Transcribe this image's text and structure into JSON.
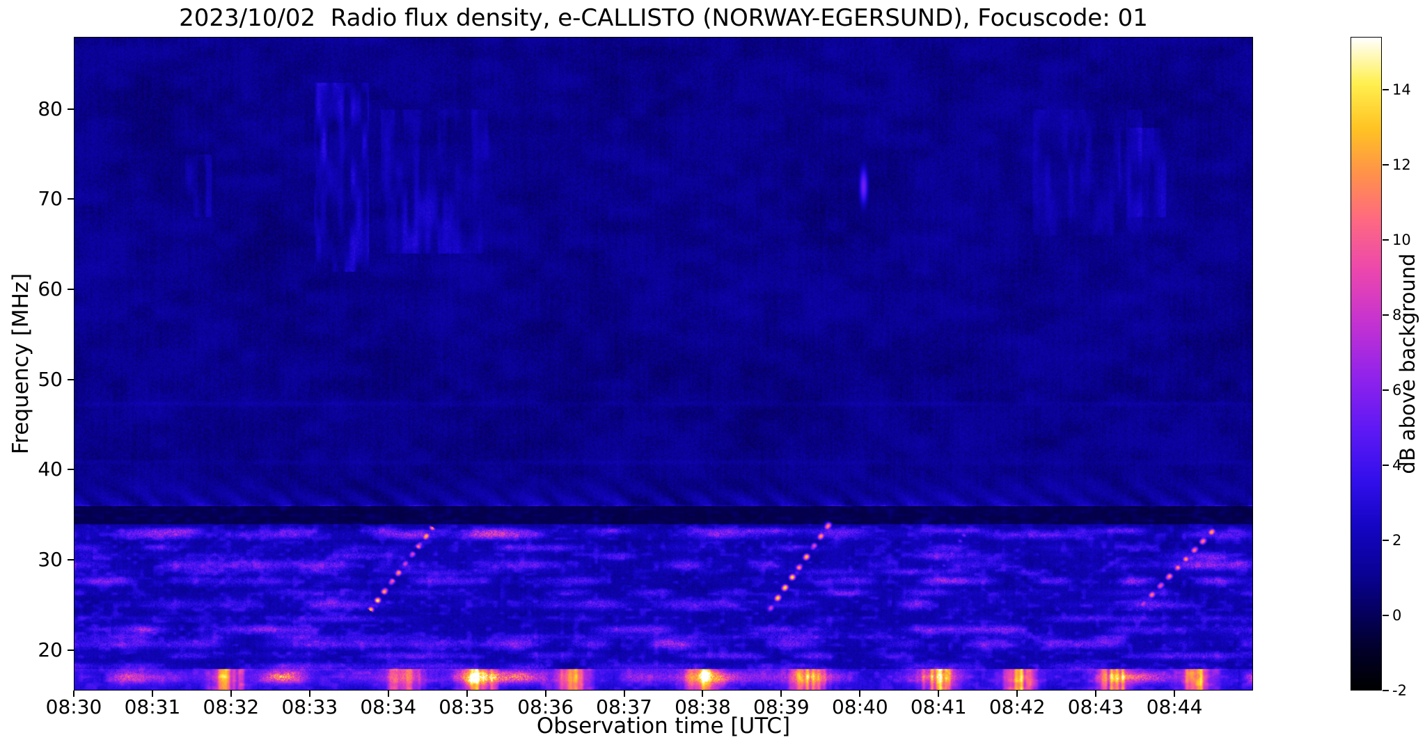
{
  "chart_data": {
    "type": "heatmap",
    "title": "2023/10/02  Radio flux density, e-CALLISTO (NORWAY-EGERSUND), Focuscode: 01",
    "date": "2023/10/02",
    "instrument": "e-CALLISTO",
    "station": "NORWAY-EGERSUND",
    "focuscode": "01",
    "xlabel": "Observation time [UTC]",
    "ylabel": "Frequency [MHz]",
    "x_range_utc": [
      "08:30",
      "08:45"
    ],
    "x_duration_min": 15,
    "x_ticks": [
      "08:30",
      "08:31",
      "08:32",
      "08:33",
      "08:34",
      "08:35",
      "08:36",
      "08:37",
      "08:38",
      "08:39",
      "08:40",
      "08:41",
      "08:42",
      "08:43",
      "08:44"
    ],
    "y_range_mhz": [
      15.5,
      88
    ],
    "y_ticks": [
      20,
      30,
      40,
      50,
      60,
      70,
      80
    ],
    "colorbar": {
      "label": "dB above background",
      "ticks": [
        -2,
        0,
        2,
        4,
        6,
        8,
        10,
        12,
        14
      ],
      "range": [
        -2,
        15.4
      ],
      "gradient": [
        {
          "u": 0.0,
          "c": "#000000"
        },
        {
          "u": 0.06,
          "c": "#020028"
        },
        {
          "u": 0.12,
          "c": "#05005f"
        },
        {
          "u": 0.18,
          "c": "#0a0296"
        },
        {
          "u": 0.25,
          "c": "#1405c3"
        },
        {
          "u": 0.32,
          "c": "#320feb"
        },
        {
          "u": 0.4,
          "c": "#5f19f5"
        },
        {
          "u": 0.48,
          "c": "#9123eb"
        },
        {
          "u": 0.56,
          "c": "#c332d2"
        },
        {
          "u": 0.64,
          "c": "#eb46af"
        },
        {
          "u": 0.72,
          "c": "#ff6982"
        },
        {
          "u": 0.79,
          "c": "#ff914b"
        },
        {
          "u": 0.86,
          "c": "#ffc323"
        },
        {
          "u": 0.93,
          "c": "#fff050"
        },
        {
          "u": 1.0,
          "c": "#ffffff"
        }
      ]
    },
    "features": [
      "Quiet deep-blue background (~0-1 dB) above ~36 MHz",
      "Strong broadband interference band below ~35 MHz with bright horizontal striations, up to ~15 dB near 16-17 MHz",
      "Dark attenuated lane at ~34-36 MHz",
      "Wavy scalloped arcs just above the band at 36-40 MHz",
      "Drifting burst ~08:33:47-08:34:33 rising ~24 to 33 MHz",
      "Drifting burst ~08:38:49-08:39:37 rising ~24 to 34 MHz",
      "Faint drifting burst ~08:40:54-08:41:21 around 27-33 MHz",
      "Drifting burst ~08:43:33-08:44:30 rising ~24 to 33 MHz",
      "Compact bright feature at ~08:40 between 69-74 MHz",
      "Faint blue vertical haze streaks ~08:33-08:35 between 62-83 MHz"
    ],
    "render": {
      "rfi_lines": [
        {
          "f": 16.9,
          "a": 5.5,
          "w": 0.5,
          "s": 1
        },
        {
          "f": 18.1,
          "a": 2.6,
          "w": 0.35,
          "s": 2
        },
        {
          "f": 19.3,
          "a": 2.0,
          "w": 0.3,
          "s": 3
        },
        {
          "f": 20.6,
          "a": 3.2,
          "w": 0.4,
          "s": 4
        },
        {
          "f": 21.4,
          "a": 1.8,
          "w": 0.25,
          "s": 5
        },
        {
          "f": 22.2,
          "a": 2.8,
          "w": 0.35,
          "s": 6
        },
        {
          "f": 23.4,
          "a": 1.6,
          "w": 0.3,
          "s": 7
        },
        {
          "f": 25.0,
          "a": 3.2,
          "w": 0.45,
          "s": 8
        },
        {
          "f": 26.3,
          "a": 2.0,
          "w": 0.3,
          "s": 9
        },
        {
          "f": 27.6,
          "a": 2.6,
          "w": 0.35,
          "s": 10
        },
        {
          "f": 28.6,
          "a": 1.7,
          "w": 0.25,
          "s": 11
        },
        {
          "f": 29.4,
          "a": 3.2,
          "w": 0.4,
          "s": 12
        },
        {
          "f": 30.4,
          "a": 2.4,
          "w": 0.3,
          "s": 13
        },
        {
          "f": 31.3,
          "a": 2.0,
          "w": 0.3,
          "s": 14
        },
        {
          "f": 32.7,
          "a": 3.8,
          "w": 0.35,
          "s": 15
        },
        {
          "f": 33.2,
          "a": 2.2,
          "w": 0.25,
          "s": 16
        }
      ],
      "dark_lane": [
        33.9,
        35.9
      ],
      "bursts": [
        {
          "t0": 3.78,
          "f0": 24.5,
          "t1": 4.55,
          "f1": 33.4,
          "db": 14,
          "ph": 2
        },
        {
          "t0": 8.82,
          "f0": 24.0,
          "t1": 9.62,
          "f1": 34.0,
          "db": 13,
          "ph": 11
        },
        {
          "t0": 10.9,
          "f0": 27.0,
          "t1": 11.35,
          "f1": 33.0,
          "db": 6,
          "ph": 31
        },
        {
          "t0": 13.55,
          "f0": 24.5,
          "t1": 14.5,
          "f1": 33.2,
          "db": 13,
          "ph": 23
        }
      ],
      "hazes": [
        {
          "t0": 3.05,
          "t1": 3.75,
          "f_lo": 62,
          "f_hi": 83,
          "db": 2.2,
          "s": 3
        },
        {
          "t0": 3.9,
          "t1": 5.3,
          "f_lo": 64,
          "f_hi": 80,
          "db": 1.6,
          "s": 9
        },
        {
          "t0": 1.4,
          "t1": 1.75,
          "f_lo": 68,
          "f_hi": 75,
          "db": 1.8,
          "s": 15
        },
        {
          "t0": 12.2,
          "t1": 13.6,
          "f_lo": 66,
          "f_hi": 80,
          "db": 1.0,
          "s": 21
        },
        {
          "t0": 13.3,
          "t1": 13.9,
          "f_lo": 68,
          "f_hi": 78,
          "db": 1.4,
          "s": 27
        }
      ],
      "spot": {
        "t": 10.05,
        "f": 71.5,
        "db": 5.5
      },
      "faint_lines": [
        {
          "f": 47.3,
          "a": 0.55
        },
        {
          "f": 40.8,
          "a": 0.4
        }
      ],
      "bottom_patch_times": [
        1.95,
        4.2,
        5.15,
        6.35,
        8.0,
        9.35,
        11.0,
        12.05,
        13.25,
        14.3
      ]
    }
  }
}
